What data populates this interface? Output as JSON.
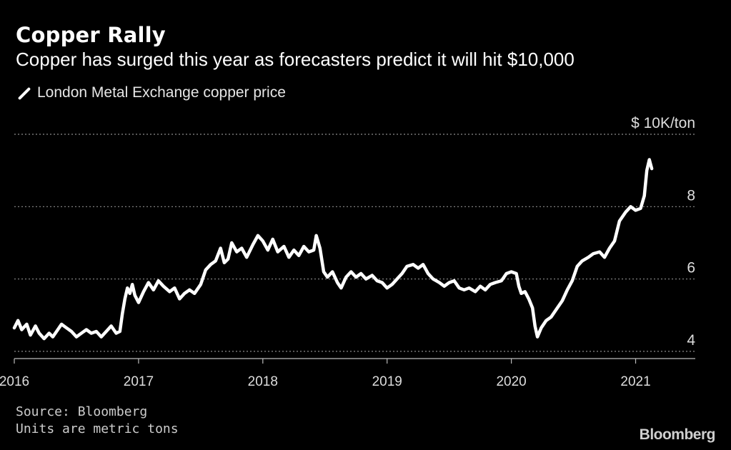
{
  "header": {
    "title": "Copper Rally",
    "subtitle": "Copper has surged this year as forecasters predict it will hit $10,000"
  },
  "footer": {
    "source": "Source: Bloomberg",
    "note": "Units are metric tons",
    "brand": "Bloomberg"
  },
  "colors": {
    "background": "#000000",
    "line": "#ffffff",
    "grid": "#8c8c8c",
    "text": "#ffffff"
  },
  "chart_data": {
    "type": "line",
    "title": "Copper Rally",
    "subtitle": "Copper has surged this year as forecasters predict it will hit $10,000",
    "unit_label": "$ 10K/ton",
    "xlabel": "",
    "ylabel": "",
    "xlim": [
      2016.0,
      2021.48
    ],
    "ylim": [
      3.8,
      10.0
    ],
    "x_ticks": [
      {
        "value": 2016,
        "label": "2016"
      },
      {
        "value": 2017,
        "label": "2017"
      },
      {
        "value": 2018,
        "label": "2018"
      },
      {
        "value": 2019,
        "label": "2019"
      },
      {
        "value": 2020,
        "label": "2020"
      },
      {
        "value": 2021,
        "label": "2021"
      }
    ],
    "y_ticks": [
      {
        "value": 4,
        "label": "4"
      },
      {
        "value": 6,
        "label": "6"
      },
      {
        "value": 8,
        "label": "8"
      },
      {
        "value": 10,
        "label": "$ 10K/ton"
      }
    ],
    "grid": "horizontal dotted",
    "legend_position": "top-left",
    "series": [
      {
        "name": "London Metal Exchange copper price",
        "points": [
          [
            2016.0,
            4.65
          ],
          [
            2016.03,
            4.85
          ],
          [
            2016.06,
            4.6
          ],
          [
            2016.1,
            4.75
          ],
          [
            2016.13,
            4.45
          ],
          [
            2016.17,
            4.7
          ],
          [
            2016.2,
            4.5
          ],
          [
            2016.24,
            4.35
          ],
          [
            2016.28,
            4.5
          ],
          [
            2016.31,
            4.4
          ],
          [
            2016.35,
            4.6
          ],
          [
            2016.38,
            4.75
          ],
          [
            2016.42,
            4.65
          ],
          [
            2016.46,
            4.55
          ],
          [
            2016.5,
            4.4
          ],
          [
            2016.54,
            4.5
          ],
          [
            2016.58,
            4.6
          ],
          [
            2016.62,
            4.5
          ],
          [
            2016.66,
            4.55
          ],
          [
            2016.7,
            4.4
          ],
          [
            2016.74,
            4.55
          ],
          [
            2016.78,
            4.7
          ],
          [
            2016.82,
            4.5
          ],
          [
            2016.85,
            4.55
          ],
          [
            2016.87,
            5.05
          ],
          [
            2016.89,
            5.45
          ],
          [
            2016.91,
            5.75
          ],
          [
            2016.93,
            5.6
          ],
          [
            2016.95,
            5.85
          ],
          [
            2016.97,
            5.55
          ],
          [
            2017.0,
            5.35
          ],
          [
            2017.04,
            5.65
          ],
          [
            2017.08,
            5.9
          ],
          [
            2017.12,
            5.7
          ],
          [
            2017.16,
            5.95
          ],
          [
            2017.2,
            5.8
          ],
          [
            2017.25,
            5.65
          ],
          [
            2017.29,
            5.75
          ],
          [
            2017.33,
            5.45
          ],
          [
            2017.37,
            5.6
          ],
          [
            2017.41,
            5.7
          ],
          [
            2017.45,
            5.6
          ],
          [
            2017.5,
            5.85
          ],
          [
            2017.54,
            6.25
          ],
          [
            2017.58,
            6.4
          ],
          [
            2017.62,
            6.5
          ],
          [
            2017.66,
            6.85
          ],
          [
            2017.69,
            6.45
          ],
          [
            2017.72,
            6.55
          ],
          [
            2017.75,
            7.0
          ],
          [
            2017.79,
            6.75
          ],
          [
            2017.83,
            6.85
          ],
          [
            2017.87,
            6.6
          ],
          [
            2017.92,
            6.95
          ],
          [
            2017.96,
            7.2
          ],
          [
            2018.0,
            7.05
          ],
          [
            2018.04,
            6.8
          ],
          [
            2018.08,
            7.1
          ],
          [
            2018.12,
            6.75
          ],
          [
            2018.17,
            6.9
          ],
          [
            2018.21,
            6.6
          ],
          [
            2018.25,
            6.8
          ],
          [
            2018.29,
            6.65
          ],
          [
            2018.33,
            6.9
          ],
          [
            2018.37,
            6.75
          ],
          [
            2018.41,
            6.8
          ],
          [
            2018.43,
            7.2
          ],
          [
            2018.46,
            6.85
          ],
          [
            2018.49,
            6.2
          ],
          [
            2018.52,
            6.05
          ],
          [
            2018.56,
            6.2
          ],
          [
            2018.6,
            5.9
          ],
          [
            2018.63,
            5.75
          ],
          [
            2018.67,
            6.05
          ],
          [
            2018.71,
            6.2
          ],
          [
            2018.75,
            6.05
          ],
          [
            2018.79,
            6.15
          ],
          [
            2018.83,
            6.0
          ],
          [
            2018.88,
            6.1
          ],
          [
            2018.92,
            5.95
          ],
          [
            2018.96,
            5.9
          ],
          [
            2019.0,
            5.75
          ],
          [
            2019.04,
            5.85
          ],
          [
            2019.08,
            6.0
          ],
          [
            2019.12,
            6.15
          ],
          [
            2019.16,
            6.35
          ],
          [
            2019.21,
            6.4
          ],
          [
            2019.25,
            6.3
          ],
          [
            2019.29,
            6.4
          ],
          [
            2019.33,
            6.15
          ],
          [
            2019.37,
            6.0
          ],
          [
            2019.42,
            5.9
          ],
          [
            2019.46,
            5.8
          ],
          [
            2019.5,
            5.9
          ],
          [
            2019.54,
            5.95
          ],
          [
            2019.58,
            5.75
          ],
          [
            2019.62,
            5.7
          ],
          [
            2019.66,
            5.75
          ],
          [
            2019.71,
            5.65
          ],
          [
            2019.75,
            5.8
          ],
          [
            2019.79,
            5.7
          ],
          [
            2019.83,
            5.85
          ],
          [
            2019.87,
            5.9
          ],
          [
            2019.92,
            5.95
          ],
          [
            2019.96,
            6.15
          ],
          [
            2020.0,
            6.2
          ],
          [
            2020.04,
            6.15
          ],
          [
            2020.06,
            5.8
          ],
          [
            2020.08,
            5.6
          ],
          [
            2020.11,
            5.65
          ],
          [
            2020.14,
            5.45
          ],
          [
            2020.17,
            5.2
          ],
          [
            2020.19,
            4.7
          ],
          [
            2020.21,
            4.4
          ],
          [
            2020.24,
            4.65
          ],
          [
            2020.28,
            4.85
          ],
          [
            2020.32,
            4.95
          ],
          [
            2020.36,
            5.15
          ],
          [
            2020.41,
            5.4
          ],
          [
            2020.45,
            5.7
          ],
          [
            2020.49,
            5.95
          ],
          [
            2020.53,
            6.35
          ],
          [
            2020.57,
            6.5
          ],
          [
            2020.62,
            6.6
          ],
          [
            2020.66,
            6.7
          ],
          [
            2020.71,
            6.75
          ],
          [
            2020.75,
            6.6
          ],
          [
            2020.79,
            6.85
          ],
          [
            2020.83,
            7.05
          ],
          [
            2020.87,
            7.6
          ],
          [
            2020.92,
            7.85
          ],
          [
            2020.96,
            8.0
          ],
          [
            2021.0,
            7.9
          ],
          [
            2021.04,
            7.95
          ],
          [
            2021.07,
            8.3
          ],
          [
            2021.09,
            9.0
          ],
          [
            2021.11,
            9.3
          ],
          [
            2021.13,
            9.05
          ]
        ]
      }
    ]
  }
}
